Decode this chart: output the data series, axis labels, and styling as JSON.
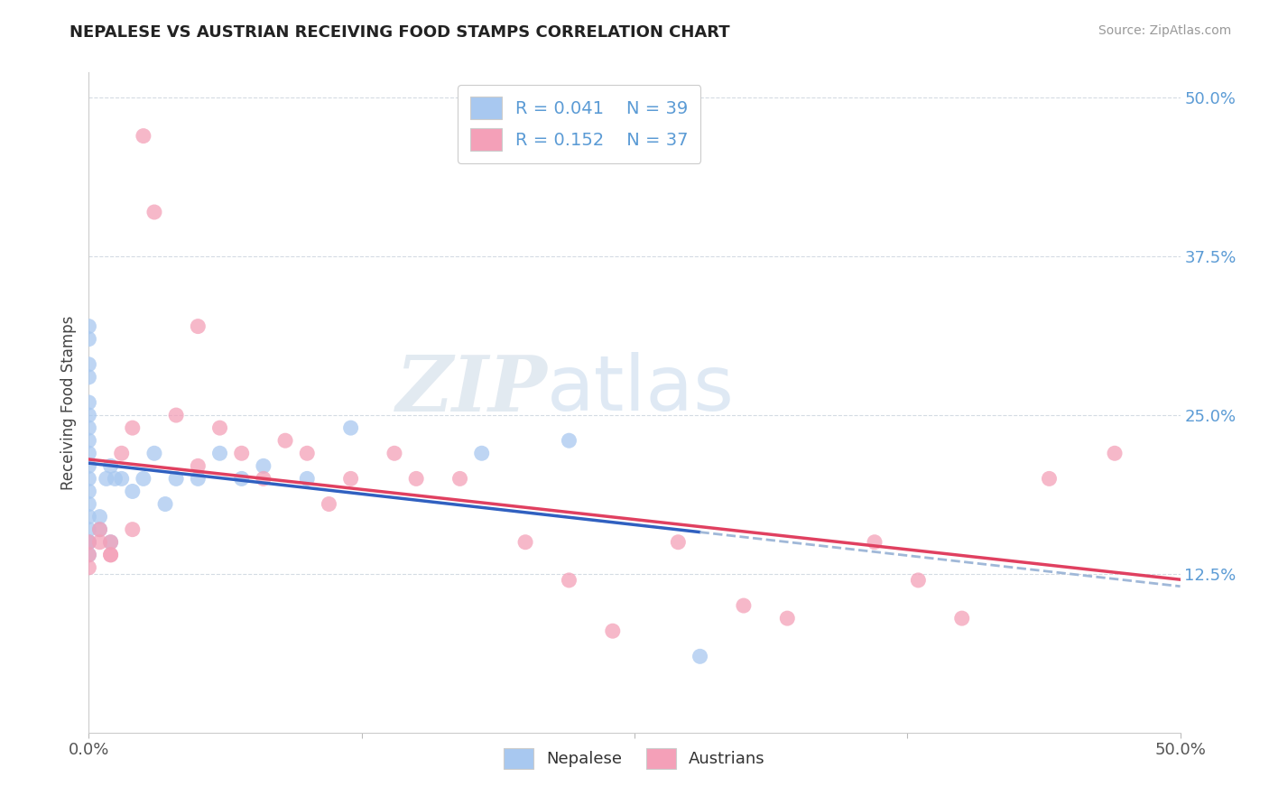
{
  "title": "NEPALESE VS AUSTRIAN RECEIVING FOOD STAMPS CORRELATION CHART",
  "source": "Source: ZipAtlas.com",
  "ylabel": "Receiving Food Stamps",
  "ytick_labels": [
    "12.5%",
    "25.0%",
    "37.5%",
    "50.0%"
  ],
  "ytick_values": [
    0.125,
    0.25,
    0.375,
    0.5
  ],
  "xlim": [
    0.0,
    0.5
  ],
  "ylim": [
    0.0,
    0.52
  ],
  "legend_label1": "Nepalese",
  "legend_label2": "Austrians",
  "R1": 0.041,
  "N1": 39,
  "R2": 0.152,
  "N2": 37,
  "color_blue": "#a8c8f0",
  "color_pink": "#f4a0b8",
  "color_blue_line": "#3060c0",
  "color_pink_line": "#e04060",
  "color_dashed_line": "#a0b8d8",
  "color_grid": "#d0d8e0",
  "background_color": "#ffffff",
  "watermark_zip": "ZIP",
  "watermark_atlas": "atlas",
  "nepalese_x": [
    0.0,
    0.0,
    0.0,
    0.0,
    0.0,
    0.0,
    0.0,
    0.0,
    0.0,
    0.0,
    0.0,
    0.0,
    0.0,
    0.0,
    0.0,
    0.0,
    0.0,
    0.0,
    0.005,
    0.005,
    0.008,
    0.01,
    0.01,
    0.012,
    0.015,
    0.02,
    0.025,
    0.03,
    0.035,
    0.04,
    0.05,
    0.06,
    0.07,
    0.08,
    0.1,
    0.12,
    0.18,
    0.22,
    0.28
  ],
  "nepalese_y": [
    0.32,
    0.31,
    0.29,
    0.28,
    0.26,
    0.25,
    0.24,
    0.23,
    0.22,
    0.21,
    0.2,
    0.19,
    0.18,
    0.17,
    0.16,
    0.15,
    0.15,
    0.14,
    0.16,
    0.17,
    0.2,
    0.15,
    0.21,
    0.2,
    0.2,
    0.19,
    0.2,
    0.22,
    0.18,
    0.2,
    0.2,
    0.22,
    0.2,
    0.21,
    0.2,
    0.24,
    0.22,
    0.23,
    0.06
  ],
  "austrian_x": [
    0.0,
    0.0,
    0.0,
    0.005,
    0.005,
    0.01,
    0.01,
    0.01,
    0.015,
    0.02,
    0.02,
    0.025,
    0.03,
    0.04,
    0.05,
    0.05,
    0.06,
    0.07,
    0.08,
    0.09,
    0.1,
    0.11,
    0.12,
    0.14,
    0.15,
    0.17,
    0.2,
    0.22,
    0.24,
    0.27,
    0.3,
    0.32,
    0.36,
    0.38,
    0.4,
    0.44,
    0.47
  ],
  "austrian_y": [
    0.15,
    0.14,
    0.13,
    0.16,
    0.15,
    0.14,
    0.15,
    0.14,
    0.22,
    0.24,
    0.16,
    0.47,
    0.41,
    0.25,
    0.32,
    0.21,
    0.24,
    0.22,
    0.2,
    0.23,
    0.22,
    0.18,
    0.2,
    0.22,
    0.2,
    0.2,
    0.15,
    0.12,
    0.08,
    0.15,
    0.1,
    0.09,
    0.15,
    0.12,
    0.09,
    0.2,
    0.22
  ]
}
